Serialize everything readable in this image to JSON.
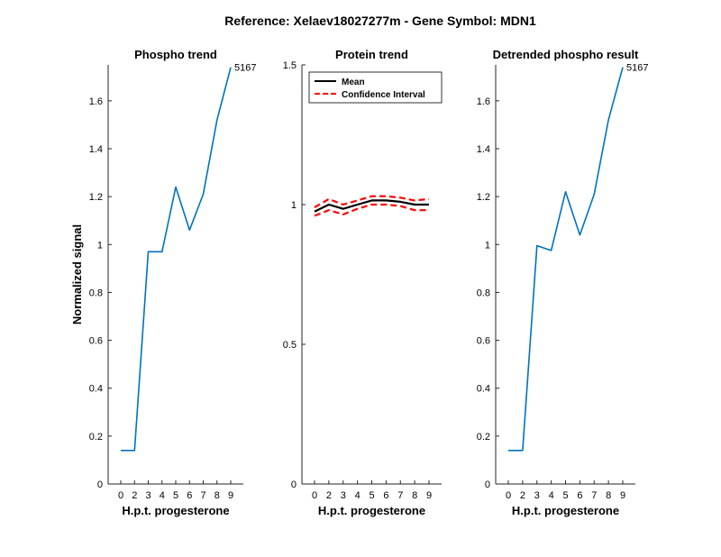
{
  "figure_title": "Reference:  Xelaev18027277m - Gene Symbol:  MDN1",
  "chart_data": [
    {
      "type": "line",
      "title": "Phospho trend",
      "xlabel": "H.p.t. progesterone",
      "ylabel": "Normalized signal",
      "xticks": [
        "0",
        "2",
        "3",
        "4",
        "5",
        "6",
        "7",
        "8",
        "9"
      ],
      "yticks": [
        "0",
        "0.2",
        "0.4",
        "0.6",
        "0.8",
        "1",
        "1.2",
        "1.4",
        "1.6"
      ],
      "ytick_values": [
        0,
        0.2,
        0.4,
        0.6,
        0.8,
        1,
        1.2,
        1.4,
        1.6
      ],
      "ylim": [
        0,
        1.75
      ],
      "series": [
        {
          "values": [
            0.14,
            0.14,
            0.97,
            0.97,
            1.24,
            1.06,
            1.21,
            1.52,
            1.74
          ],
          "color": "#0072bd"
        }
      ],
      "annotation": "5167"
    },
    {
      "type": "line",
      "title": "Protein trend",
      "xlabel": "H.p.t. progesterone",
      "ylabel": "",
      "xticks": [
        "0",
        "2",
        "3",
        "4",
        "5",
        "6",
        "7",
        "8",
        "9"
      ],
      "yticks": [
        "0",
        "0.5",
        "1",
        "1.5"
      ],
      "ytick_values": [
        0,
        0.5,
        1,
        1.5
      ],
      "ylim": [
        0,
        1.5
      ],
      "legend_position": "top-left",
      "series": [
        {
          "name": "Mean",
          "values": [
            0.975,
            1.0,
            0.985,
            1.0,
            1.015,
            1.015,
            1.01,
            1.0,
            1.0
          ],
          "color": "#000000",
          "style": "solid"
        },
        {
          "name": "Confidence Interval",
          "values": [
            0.99,
            1.02,
            1.0,
            1.015,
            1.03,
            1.03,
            1.025,
            1.015,
            1.02
          ],
          "color": "#ff0000",
          "style": "dashed"
        },
        {
          "values": [
            0.96,
            0.98,
            0.965,
            0.985,
            1.0,
            1.0,
            0.995,
            0.98,
            0.98
          ],
          "color": "#ff0000",
          "style": "dashed"
        }
      ]
    },
    {
      "type": "line",
      "title": "Detrended phospho result",
      "xlabel": "H.p.t. progesterone",
      "ylabel": "",
      "xticks": [
        "0",
        "2",
        "3",
        "4",
        "5",
        "6",
        "7",
        "8",
        "9"
      ],
      "yticks": [
        "0",
        "0.2",
        "0.4",
        "0.6",
        "0.8",
        "1",
        "1.2",
        "1.4",
        "1.6"
      ],
      "ytick_values": [
        0,
        0.2,
        0.4,
        0.6,
        0.8,
        1,
        1.2,
        1.4,
        1.6
      ],
      "ylim": [
        0,
        1.75
      ],
      "series": [
        {
          "values": [
            0.14,
            0.14,
            0.995,
            0.975,
            1.22,
            1.04,
            1.21,
            1.52,
            1.74
          ],
          "color": "#0072bd"
        }
      ],
      "annotation": "5167"
    }
  ]
}
